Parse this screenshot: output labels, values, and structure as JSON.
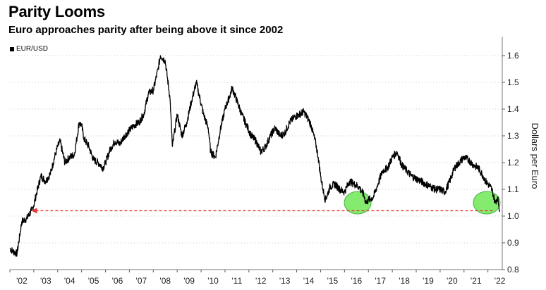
{
  "title": "Parity Looms",
  "subtitle": "Euro approaches parity after being above it since 2002",
  "chart_data": {
    "type": "line",
    "title": "Parity Looms",
    "subtitle": "Euro approaches parity after being above it since 2002",
    "ylabel": "Dollars per Euro",
    "xlabel": "",
    "ylim": [
      0.8,
      1.65
    ],
    "xlim": [
      2002.0,
      2022.6
    ],
    "yticks": [
      "0.8",
      "0.9",
      "1.0",
      "1.1",
      "1.2",
      "1.3",
      "1.4",
      "1.5",
      "1.6"
    ],
    "xticks": [
      "'02",
      "'03",
      "'04",
      "'05",
      "'06",
      "'07",
      "'08",
      "'09",
      "'10",
      "'11",
      "'12",
      "'13",
      "'14",
      "'15",
      "'16",
      "'17",
      "'18",
      "'19",
      "'20",
      "'21",
      "'22"
    ],
    "legend_position": "top-left",
    "grid": "horizontal dotted",
    "series": [
      {
        "name": "EUR/USD",
        "color": "#000000",
        "x": [
          2002.0,
          2002.1,
          2002.3,
          2002.5,
          2002.7,
          2002.9,
          2003.0,
          2003.1,
          2003.3,
          2003.5,
          2003.7,
          2003.9,
          2004.0,
          2004.1,
          2004.3,
          2004.5,
          2004.7,
          2004.9,
          2005.0,
          2005.1,
          2005.3,
          2005.5,
          2005.7,
          2005.9,
          2006.0,
          2006.2,
          2006.4,
          2006.6,
          2006.8,
          2007.0,
          2007.2,
          2007.4,
          2007.6,
          2007.8,
          2008.0,
          2008.2,
          2008.3,
          2008.5,
          2008.7,
          2008.8,
          2008.9,
          2009.0,
          2009.2,
          2009.4,
          2009.6,
          2009.8,
          2009.9,
          2010.1,
          2010.3,
          2010.4,
          2010.6,
          2010.8,
          2011.0,
          2011.2,
          2011.3,
          2011.5,
          2011.7,
          2011.9,
          2012.1,
          2012.3,
          2012.5,
          2012.7,
          2012.9,
          2013.1,
          2013.3,
          2013.5,
          2013.7,
          2013.9,
          2014.1,
          2014.3,
          2014.5,
          2014.6,
          2014.8,
          2014.9,
          2015.0,
          2015.1,
          2015.2,
          2015.4,
          2015.6,
          2015.8,
          2016.0,
          2016.2,
          2016.4,
          2016.6,
          2016.8,
          2016.9,
          2017.0,
          2017.2,
          2017.4,
          2017.6,
          2017.8,
          2018.0,
          2018.2,
          2018.4,
          2018.6,
          2018.8,
          2019.0,
          2019.2,
          2019.4,
          2019.6,
          2019.8,
          2020.0,
          2020.2,
          2020.4,
          2020.6,
          2020.8,
          2021.0,
          2021.2,
          2021.4,
          2021.6,
          2021.8,
          2021.9,
          2022.1,
          2022.2,
          2022.3,
          2022.4,
          2022.5
        ],
        "y": [
          0.88,
          0.87,
          0.86,
          0.98,
          0.99,
          1.02,
          1.04,
          1.08,
          1.15,
          1.13,
          1.16,
          1.23,
          1.26,
          1.28,
          1.2,
          1.22,
          1.23,
          1.35,
          1.34,
          1.29,
          1.26,
          1.21,
          1.2,
          1.18,
          1.2,
          1.25,
          1.28,
          1.27,
          1.3,
          1.32,
          1.34,
          1.35,
          1.38,
          1.46,
          1.47,
          1.55,
          1.6,
          1.58,
          1.44,
          1.26,
          1.32,
          1.38,
          1.3,
          1.35,
          1.43,
          1.5,
          1.46,
          1.38,
          1.33,
          1.24,
          1.22,
          1.32,
          1.4,
          1.45,
          1.48,
          1.43,
          1.38,
          1.34,
          1.3,
          1.28,
          1.24,
          1.26,
          1.3,
          1.33,
          1.3,
          1.31,
          1.35,
          1.37,
          1.38,
          1.39,
          1.36,
          1.34,
          1.27,
          1.22,
          1.15,
          1.1,
          1.06,
          1.11,
          1.12,
          1.1,
          1.09,
          1.13,
          1.12,
          1.11,
          1.08,
          1.05,
          1.06,
          1.07,
          1.12,
          1.17,
          1.18,
          1.22,
          1.24,
          1.19,
          1.17,
          1.15,
          1.14,
          1.13,
          1.12,
          1.11,
          1.1,
          1.1,
          1.09,
          1.13,
          1.18,
          1.2,
          1.22,
          1.21,
          1.19,
          1.18,
          1.15,
          1.13,
          1.11,
          1.09,
          1.05,
          1.07,
          1.02
        ]
      }
    ],
    "annotations": [
      {
        "type": "dashed-arrow",
        "color": "#e53935",
        "y": 1.02,
        "x_from": 2022.2,
        "x_to": 2002.9
      },
      {
        "type": "highlight-circle",
        "color": "#66e64a",
        "x": 2016.55,
        "y": 1.05
      },
      {
        "type": "highlight-circle",
        "color": "#66e64a",
        "x": 2021.95,
        "y": 1.05
      }
    ]
  }
}
